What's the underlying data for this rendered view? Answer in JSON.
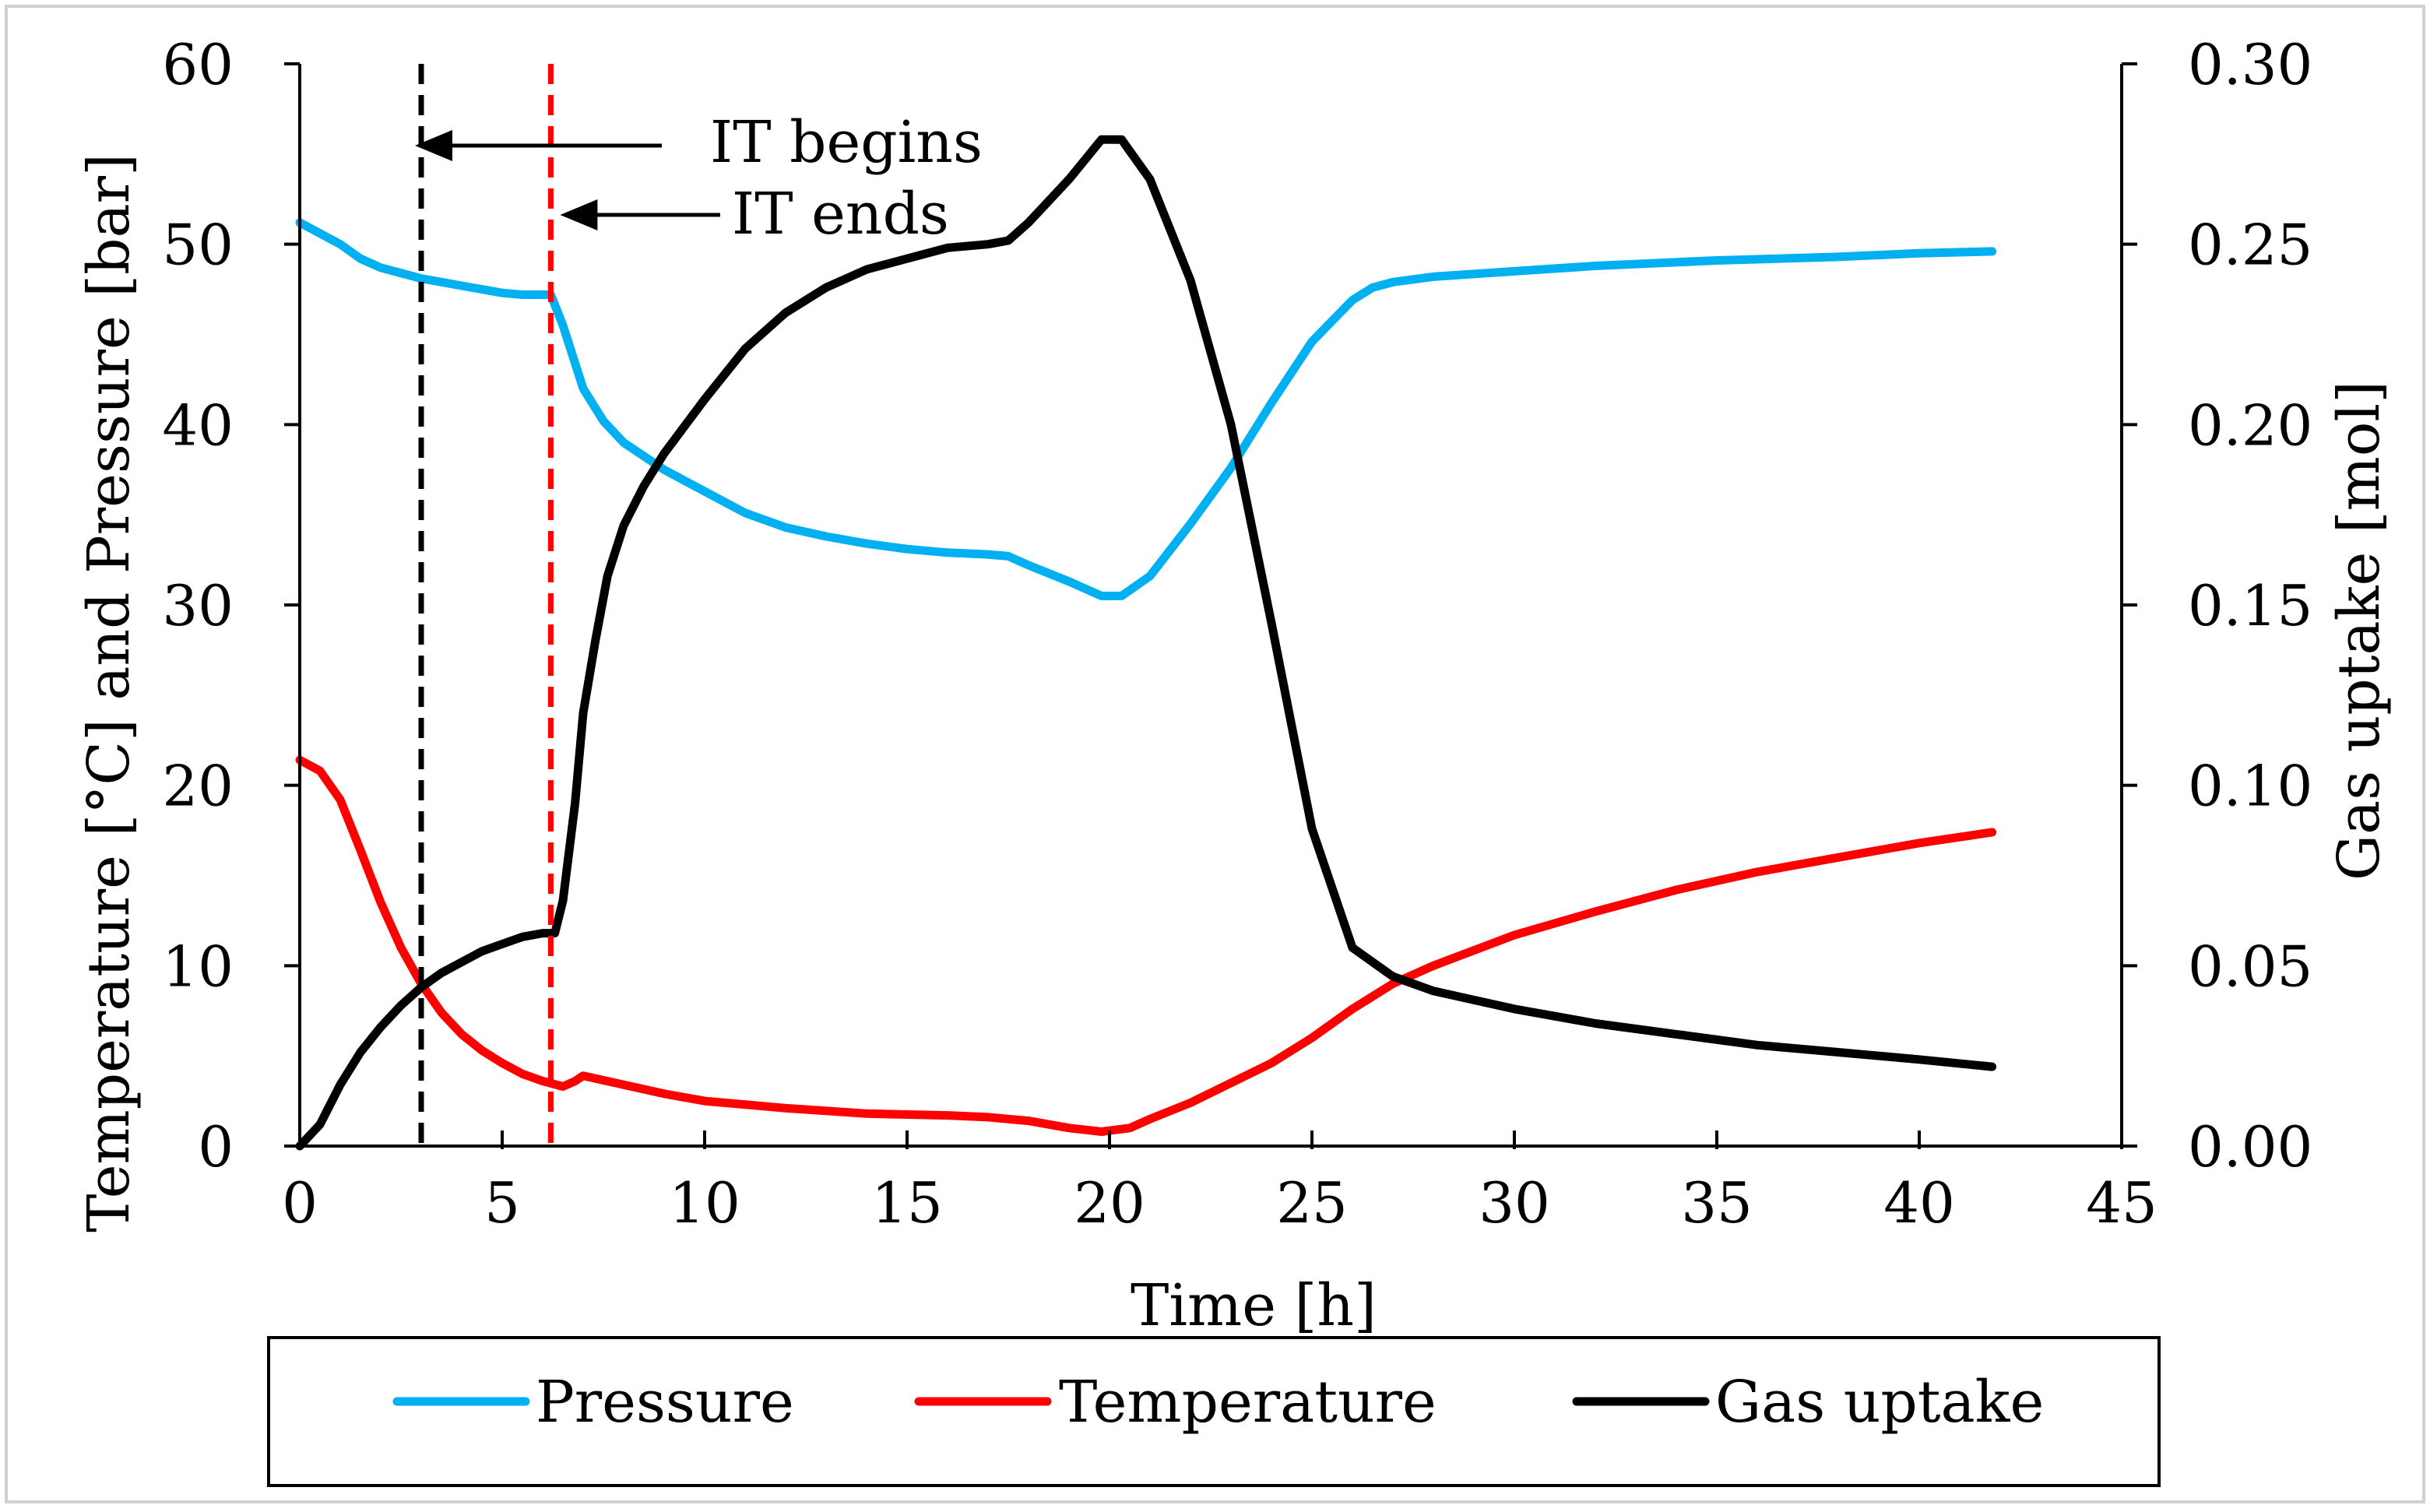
{
  "chart_data": {
    "type": "line",
    "xlabel": "Time [h]",
    "ylabel_left": "Temperature [°C] and Pressure [bar]",
    "ylabel_right": "Gas uptake [mol]",
    "xlim": [
      0,
      45
    ],
    "ylim_left": [
      0,
      60
    ],
    "ylim_right": [
      0,
      0.3
    ],
    "x_ticks": [
      "0",
      "5",
      "10",
      "15",
      "20",
      "25",
      "30",
      "35",
      "40",
      "45"
    ],
    "y_left_ticks": [
      "0",
      "10",
      "20",
      "30",
      "40",
      "50",
      "60"
    ],
    "y_right_ticks": [
      "0.00",
      "0.05",
      "0.10",
      "0.15",
      "0.20",
      "0.25",
      "0.30"
    ],
    "grid": false,
    "legend_position": "bottom",
    "legend": [
      "Pressure",
      "Temperature",
      "Gas uptake"
    ],
    "colors": {
      "pressure": "#00b0f0",
      "temperature": "#ff0000",
      "gas_uptake": "#000000",
      "it_begins_line": "#000000",
      "it_ends_line": "#ff0000"
    },
    "annotations": [
      {
        "text": "IT begins",
        "x": 3
      },
      {
        "text": "IT ends",
        "x": 6.2
      }
    ],
    "series": [
      {
        "name": "Pressure",
        "axis": "left",
        "points": [
          [
            0,
            51.2
          ],
          [
            0.5,
            50.6
          ],
          [
            1,
            50.0
          ],
          [
            1.5,
            49.2
          ],
          [
            2,
            48.7
          ],
          [
            3,
            48.1
          ],
          [
            4,
            47.7
          ],
          [
            5,
            47.3
          ],
          [
            5.5,
            47.2
          ],
          [
            6.2,
            47.2
          ],
          [
            6.5,
            45.5
          ],
          [
            7,
            42.0
          ],
          [
            7.5,
            40.2
          ],
          [
            8,
            39.0
          ],
          [
            9,
            37.5
          ],
          [
            10,
            36.3
          ],
          [
            11,
            35.1
          ],
          [
            12,
            34.3
          ],
          [
            13,
            33.8
          ],
          [
            14,
            33.4
          ],
          [
            15,
            33.1
          ],
          [
            16,
            32.9
          ],
          [
            17,
            32.8
          ],
          [
            17.5,
            32.7
          ],
          [
            18,
            32.2
          ],
          [
            19,
            31.3
          ],
          [
            19.8,
            30.5
          ],
          [
            20.3,
            30.5
          ],
          [
            21,
            31.6
          ],
          [
            22,
            34.5
          ],
          [
            23,
            37.6
          ],
          [
            24,
            41.2
          ],
          [
            25,
            44.6
          ],
          [
            26,
            46.9
          ],
          [
            26.5,
            47.6
          ],
          [
            27,
            47.9
          ],
          [
            28,
            48.2
          ],
          [
            30,
            48.5
          ],
          [
            32,
            48.8
          ],
          [
            35,
            49.1
          ],
          [
            38,
            49.3
          ],
          [
            40,
            49.5
          ],
          [
            41.8,
            49.6
          ]
        ]
      },
      {
        "name": "Temperature",
        "axis": "left",
        "points": [
          [
            0,
            21.4
          ],
          [
            0.5,
            20.8
          ],
          [
            1,
            19.2
          ],
          [
            1.5,
            16.4
          ],
          [
            2,
            13.5
          ],
          [
            2.5,
            11.0
          ],
          [
            3,
            9.0
          ],
          [
            3.5,
            7.4
          ],
          [
            4,
            6.2
          ],
          [
            4.5,
            5.3
          ],
          [
            5,
            4.6
          ],
          [
            5.5,
            4.0
          ],
          [
            6,
            3.6
          ],
          [
            6.5,
            3.3
          ],
          [
            6.8,
            3.6
          ],
          [
            7,
            3.9
          ],
          [
            8,
            3.4
          ],
          [
            9,
            2.9
          ],
          [
            10,
            2.5
          ],
          [
            12,
            2.1
          ],
          [
            14,
            1.8
          ],
          [
            16,
            1.7
          ],
          [
            17,
            1.6
          ],
          [
            18,
            1.4
          ],
          [
            19,
            1.0
          ],
          [
            19.8,
            0.8
          ],
          [
            20.5,
            1.0
          ],
          [
            21,
            1.5
          ],
          [
            22,
            2.4
          ],
          [
            23,
            3.5
          ],
          [
            24,
            4.6
          ],
          [
            25,
            6.0
          ],
          [
            26,
            7.6
          ],
          [
            27,
            9.0
          ],
          [
            28,
            10.0
          ],
          [
            30,
            11.7
          ],
          [
            32,
            13.0
          ],
          [
            34,
            14.2
          ],
          [
            36,
            15.2
          ],
          [
            38,
            16.0
          ],
          [
            40,
            16.8
          ],
          [
            41.8,
            17.4
          ]
        ]
      },
      {
        "name": "Gas uptake",
        "axis": "right",
        "points": [
          [
            0,
            0.0
          ],
          [
            0.5,
            0.006
          ],
          [
            1,
            0.017
          ],
          [
            1.5,
            0.026
          ],
          [
            2,
            0.033
          ],
          [
            2.5,
            0.039
          ],
          [
            3,
            0.044
          ],
          [
            3.5,
            0.048
          ],
          [
            4,
            0.051
          ],
          [
            4.5,
            0.054
          ],
          [
            5,
            0.056
          ],
          [
            5.5,
            0.058
          ],
          [
            6,
            0.059
          ],
          [
            6.3,
            0.059
          ],
          [
            6.5,
            0.068
          ],
          [
            6.8,
            0.095
          ],
          [
            7,
            0.12
          ],
          [
            7.3,
            0.14
          ],
          [
            7.6,
            0.158
          ],
          [
            8,
            0.172
          ],
          [
            8.5,
            0.183
          ],
          [
            9,
            0.192
          ],
          [
            10,
            0.207
          ],
          [
            11,
            0.221
          ],
          [
            12,
            0.231
          ],
          [
            13,
            0.238
          ],
          [
            14,
            0.243
          ],
          [
            15,
            0.246
          ],
          [
            16,
            0.249
          ],
          [
            17,
            0.25
          ],
          [
            17.5,
            0.251
          ],
          [
            18,
            0.256
          ],
          [
            19,
            0.268
          ],
          [
            19.8,
            0.279
          ],
          [
            20.3,
            0.279
          ],
          [
            21,
            0.268
          ],
          [
            22,
            0.24
          ],
          [
            23,
            0.2
          ],
          [
            24,
            0.145
          ],
          [
            25,
            0.088
          ],
          [
            26,
            0.055
          ],
          [
            27,
            0.047
          ],
          [
            28,
            0.043
          ],
          [
            30,
            0.038
          ],
          [
            32,
            0.034
          ],
          [
            34,
            0.031
          ],
          [
            36,
            0.028
          ],
          [
            38,
            0.026
          ],
          [
            40,
            0.024
          ],
          [
            41.8,
            0.022
          ]
        ]
      }
    ]
  }
}
